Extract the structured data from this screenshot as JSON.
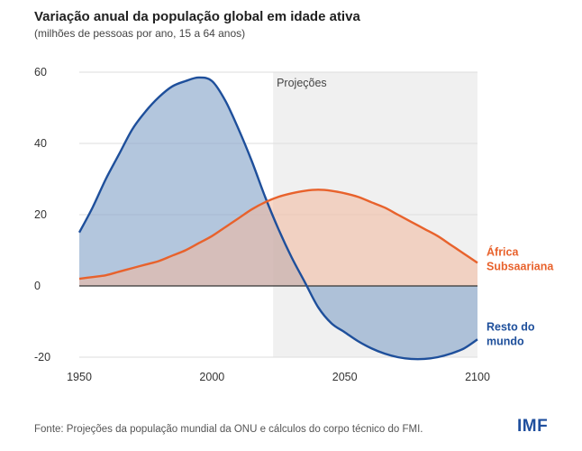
{
  "header": {
    "title": "Variação anual da população global em idade ativa",
    "subtitle": "(milhões de pessoas por ano, 15 a 64 anos)"
  },
  "footer": {
    "source": "Fonte: Projeções da população mundial da ONU e cálculos do corpo técnico do FMI.",
    "logo": "IMF"
  },
  "colors": {
    "africa_line": "#e8622c",
    "africa_fill": "#f2b89c",
    "world_line": "#1e4f9b",
    "world_fill": "#8aa7cb",
    "projection_band": "#f0f0f0",
    "gridline": "#dedede",
    "zero_line": "#333333"
  },
  "chart_data": {
    "type": "area",
    "title": "Variação anual da população global em idade ativa",
    "subtitle": "(milhões de pessoas por ano, 15 a 64 anos)",
    "xlabel": "",
    "ylabel": "",
    "xlim": [
      1950,
      2100
    ],
    "ylim": [
      -20,
      60
    ],
    "x_ticks": [
      "1950",
      "2000",
      "2050",
      "2100"
    ],
    "y_ticks": [
      "60",
      "40",
      "20",
      "0",
      "-20"
    ],
    "grid": true,
    "projection_band": {
      "label": "Projeções",
      "start": 2023,
      "end": 2100
    },
    "series": [
      {
        "name": "Resto do mundo",
        "label_lines": [
          "Resto do",
          "mundo"
        ],
        "x": [
          1950,
          1955,
          1960,
          1965,
          1970,
          1975,
          1980,
          1985,
          1990,
          1995,
          2000,
          2005,
          2010,
          2015,
          2020,
          2025,
          2030,
          2035,
          2040,
          2045,
          2050,
          2055,
          2060,
          2065,
          2070,
          2075,
          2080,
          2085,
          2090,
          2095,
          2100
        ],
        "values": [
          15,
          22,
          30,
          37,
          44,
          49,
          53,
          56,
          57.5,
          58.5,
          57.5,
          52,
          44,
          35,
          25,
          16,
          8,
          1,
          -6,
          -10.5,
          -13,
          -15.5,
          -17.5,
          -19,
          -20,
          -20.5,
          -20.5,
          -20,
          -19,
          -17.5,
          -15
        ]
      },
      {
        "name": "África Subsaariana",
        "label_lines": [
          "África",
          "Subsaariana"
        ],
        "x": [
          1950,
          1955,
          1960,
          1965,
          1970,
          1975,
          1980,
          1985,
          1990,
          1995,
          2000,
          2005,
          2010,
          2015,
          2020,
          2025,
          2030,
          2035,
          2040,
          2045,
          2050,
          2055,
          2060,
          2065,
          2070,
          2075,
          2080,
          2085,
          2090,
          2095,
          2100
        ],
        "values": [
          2,
          2.5,
          3,
          4,
          5,
          6,
          7,
          8.5,
          10,
          12,
          14,
          16.5,
          19,
          21.5,
          23.5,
          25,
          26,
          26.7,
          27,
          26.7,
          26,
          25,
          23.5,
          22,
          20,
          18,
          16,
          14,
          11.5,
          9,
          6.5
        ]
      }
    ]
  }
}
